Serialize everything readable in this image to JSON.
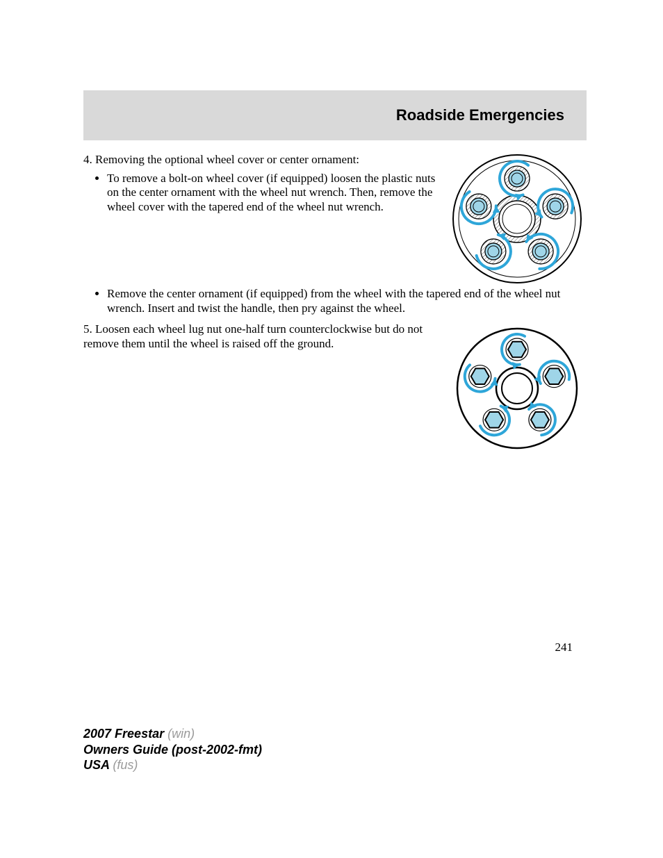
{
  "header": {
    "title": "Roadside Emergencies"
  },
  "section4": {
    "lead": "4. Removing the optional wheel cover or center ornament:",
    "bullets": [
      "To remove a bolt-on wheel cover (if equipped) loosen the plastic nuts on the center ornament with the wheel nut wrench. Then, remove the wheel cover with the tapered end of the wheel nut wrench.",
      "Remove the center ornament (if equipped) from the wheel with the tapered end of the wheel nut wrench. Insert and twist the handle, then pry against the wheel."
    ]
  },
  "section5": {
    "text": "5. Loosen each wheel lug nut one-half turn counterclockwise but do not remove them until the wheel is raised off the ground."
  },
  "page_number": "241",
  "footer": {
    "line1_bold": "2007 Freestar ",
    "line1_gray": "(win)",
    "line2_bold": "Owners Guide (post-2002-fmt)",
    "line3_bold": "USA ",
    "line3_gray": "(fus)"
  },
  "diagram": {
    "arrow_color": "#2ea6d9",
    "nut_fill": "#9fd5e8",
    "outline": "#000000",
    "bg": "#ffffff",
    "hub_hatch": "#555555",
    "lug_angles_deg": [
      90,
      162,
      234,
      306,
      18
    ],
    "wheel1": {
      "r_outer": 92,
      "r_inner_rim": 84,
      "r_hub_outer": 34,
      "r_hub_inner": 26,
      "lug_orbit": 58,
      "lug_r": 18,
      "nut_r": 12
    },
    "wheel2": {
      "r_outer": 86,
      "r_hub_outer": 30,
      "r_hub_inner": 22,
      "lug_orbit": 56,
      "hex_r": 13
    }
  }
}
